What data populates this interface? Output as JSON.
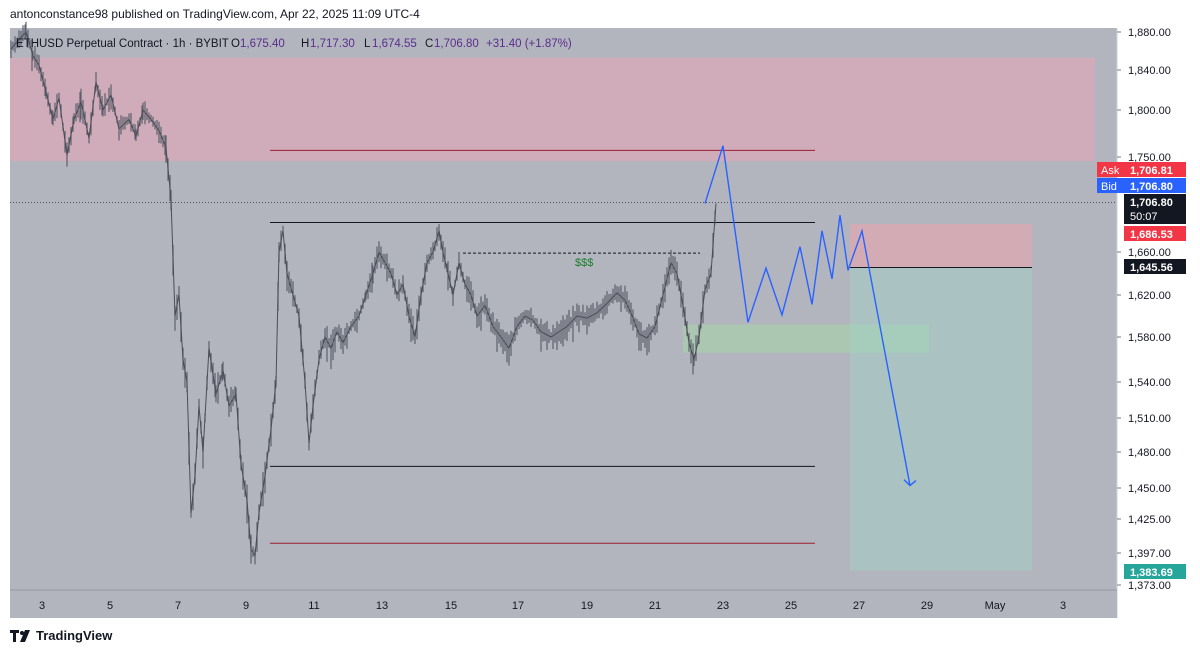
{
  "header": {
    "published": "antonconstance98 published on TradingView.com, Apr 22, 2025 11:09 UTC-4"
  },
  "legend": {
    "symbol": "ETHUSD Perpetual Contract · 1h · BYBIT",
    "open_label": "O",
    "open": "1,675.40",
    "high_label": "H",
    "high": "1,717.30",
    "low_label": "L",
    "low": "1,674.55",
    "close_label": "C",
    "close": "1,706.80",
    "change": "+31.40 (+1.87%)"
  },
  "annotation": {
    "text": "$$$"
  },
  "footer": {
    "brand": "TradingView"
  },
  "colors": {
    "plot_bg": "#b2b5be",
    "supply_zone": "#d9a8b8",
    "demand_zone": "#a5d6a7",
    "stop_zone": "#f8a0a8",
    "target_zone": "#9fd3c7",
    "candles": "#5d606b",
    "projection": "#2962ff",
    "ask": "#f23645",
    "bid": "#2962ff",
    "short_badge": "#26a69a"
  },
  "chart_data": {
    "type": "candlestick",
    "y_axis": {
      "ticks": [
        1880,
        1840,
        1800,
        1750,
        1660,
        1620,
        1580,
        1540,
        1510,
        1480,
        1450,
        1425,
        1397,
        1373
      ],
      "tick_labels": [
        "1,880.00",
        "1,840.00",
        "1,800.00",
        "1,750.00",
        "1,660.00",
        "1,620.00",
        "1,580.00",
        "1,540.00",
        "1,510.00",
        "1,480.00",
        "1,450.00",
        "1,425.00",
        "1,397.00",
        "1,373.00"
      ]
    },
    "x_axis": {
      "ticks": [
        "3",
        "5",
        "7",
        "9",
        "11",
        "13",
        "15",
        "17",
        "19",
        "21",
        "23",
        "25",
        "27",
        "29",
        "May",
        "3"
      ]
    },
    "price_badges": [
      {
        "name": "ask",
        "label": "Ask",
        "value": "1,706.81",
        "price": 1706.81
      },
      {
        "name": "bid",
        "label": "Bid",
        "value": "1,706.80",
        "price": 1706.8
      },
      {
        "name": "last",
        "value": "1,706.80",
        "countdown": "50:07",
        "price": 1706.8
      },
      {
        "name": "stop",
        "value": "1,686.53",
        "price": 1686.53
      },
      {
        "name": "entry",
        "value": "1,645.56",
        "price": 1645.56
      },
      {
        "name": "target",
        "value": "1,383.69",
        "price": 1383.69
      }
    ],
    "price_path": [
      [
        0,
        1862
      ],
      [
        8,
        1872
      ],
      [
        15,
        1880
      ],
      [
        22,
        1855
      ],
      [
        28,
        1845
      ],
      [
        35,
        1818
      ],
      [
        42,
        1790
      ],
      [
        48,
        1812
      ],
      [
        56,
        1752
      ],
      [
        63,
        1790
      ],
      [
        70,
        1808
      ],
      [
        78,
        1770
      ],
      [
        85,
        1828
      ],
      [
        92,
        1800
      ],
      [
        100,
        1815
      ],
      [
        108,
        1780
      ],
      [
        118,
        1790
      ],
      [
        125,
        1772
      ],
      [
        132,
        1800
      ],
      [
        140,
        1790
      ],
      [
        148,
        1778
      ],
      [
        155,
        1760
      ],
      [
        160,
        1710
      ],
      [
        164,
        1600
      ],
      [
        168,
        1620
      ],
      [
        172,
        1560
      ],
      [
        176,
        1540
      ],
      [
        180,
        1430
      ],
      [
        184,
        1460
      ],
      [
        188,
        1520
      ],
      [
        192,
        1480
      ],
      [
        198,
        1570
      ],
      [
        205,
        1530
      ],
      [
        212,
        1550
      ],
      [
        218,
        1520
      ],
      [
        225,
        1530
      ],
      [
        230,
        1470
      ],
      [
        236,
        1440
      ],
      [
        240,
        1400
      ],
      [
        244,
        1395
      ],
      [
        248,
        1430
      ],
      [
        254,
        1460
      ],
      [
        260,
        1500
      ],
      [
        265,
        1540
      ],
      [
        268,
        1660
      ],
      [
        272,
        1680
      ],
      [
        276,
        1640
      ],
      [
        282,
        1620
      ],
      [
        288,
        1600
      ],
      [
        294,
        1540
      ],
      [
        298,
        1488
      ],
      [
        302,
        1520
      ],
      [
        308,
        1560
      ],
      [
        314,
        1580
      ],
      [
        320,
        1570
      ],
      [
        326,
        1585
      ],
      [
        332,
        1575
      ],
      [
        340,
        1590
      ],
      [
        348,
        1600
      ],
      [
        355,
        1620
      ],
      [
        362,
        1640
      ],
      [
        368,
        1660
      ],
      [
        374,
        1650
      ],
      [
        380,
        1640
      ],
      [
        386,
        1620
      ],
      [
        392,
        1630
      ],
      [
        398,
        1600
      ],
      [
        404,
        1580
      ],
      [
        410,
        1620
      ],
      [
        416,
        1650
      ],
      [
        422,
        1660
      ],
      [
        428,
        1680
      ],
      [
        432,
        1660
      ],
      [
        437,
        1640
      ],
      [
        442,
        1620
      ],
      [
        448,
        1650
      ],
      [
        454,
        1630
      ],
      [
        460,
        1620
      ],
      [
        466,
        1600
      ],
      [
        474,
        1610
      ],
      [
        482,
        1590
      ],
      [
        490,
        1580
      ],
      [
        498,
        1570
      ],
      [
        506,
        1590
      ],
      [
        514,
        1600
      ],
      [
        522,
        1596
      ],
      [
        530,
        1585
      ],
      [
        540,
        1580
      ],
      [
        548,
        1585
      ],
      [
        556,
        1590
      ],
      [
        566,
        1600
      ],
      [
        576,
        1598
      ],
      [
        586,
        1603
      ],
      [
        596,
        1612
      ],
      [
        606,
        1622
      ],
      [
        614,
        1615
      ],
      [
        620,
        1603
      ],
      [
        628,
        1583
      ],
      [
        636,
        1579
      ],
      [
        644,
        1590
      ],
      [
        652,
        1620
      ],
      [
        660,
        1650
      ],
      [
        666,
        1640
      ],
      [
        672,
        1610
      ],
      [
        678,
        1575
      ],
      [
        683,
        1560
      ],
      [
        688,
        1580
      ],
      [
        694,
        1625
      ],
      [
        700,
        1640
      ],
      [
        705,
        1706
      ]
    ],
    "projection": [
      [
        705,
        1706
      ],
      [
        723,
        1762
      ],
      [
        748,
        1594
      ],
      [
        766,
        1645
      ],
      [
        782,
        1601
      ],
      [
        800,
        1665
      ],
      [
        812,
        1611
      ],
      [
        822,
        1680
      ],
      [
        832,
        1635
      ],
      [
        840,
        1695
      ],
      [
        848,
        1643
      ],
      [
        862,
        1680
      ],
      [
        910,
        1452
      ]
    ],
    "levels": [
      {
        "name": "upper-red-line",
        "price": 1757,
        "x1": 270,
        "x2": 815
      },
      {
        "name": "range-top-line",
        "price": 1688,
        "x1": 270,
        "x2": 815
      },
      {
        "name": "liquidity-dashed-line",
        "price": 1659,
        "x1": 463,
        "x2": 700
      },
      {
        "name": "range-bottom-line",
        "price": 1468,
        "x1": 270,
        "x2": 815
      },
      {
        "name": "lower-red-line",
        "price": 1405,
        "x1": 270,
        "x2": 815
      }
    ],
    "zones": [
      {
        "name": "supply-zone",
        "from": 1746,
        "to": 1853
      },
      {
        "name": "demand-zone",
        "from": 1566,
        "to": 1592
      }
    ],
    "position": {
      "entry": 1645.56,
      "stop": 1686.53,
      "target": 1383.69
    }
  }
}
